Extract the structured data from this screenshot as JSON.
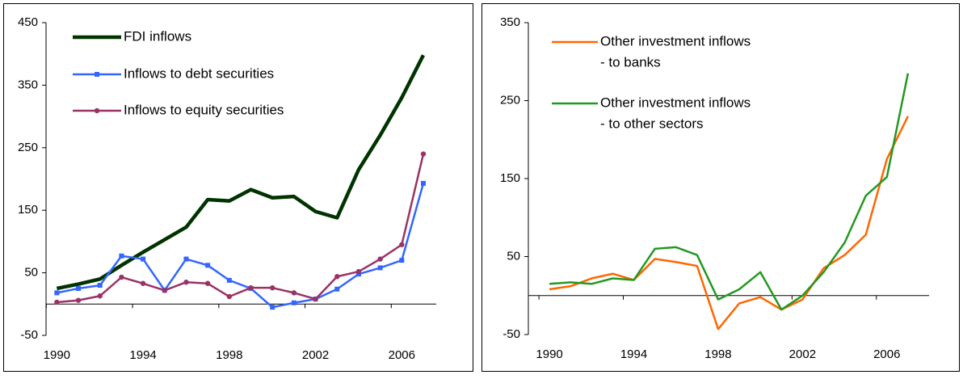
{
  "chart_data": [
    {
      "type": "line",
      "x": [
        1990,
        1991,
        1992,
        1993,
        1994,
        1995,
        1996,
        1997,
        1998,
        1999,
        2000,
        2001,
        2002,
        2003,
        2004,
        2005,
        2006,
        2007
      ],
      "xlim": [
        1989.5,
        2007.6
      ],
      "xticks": [
        1990,
        1994,
        1998,
        2002,
        2006
      ],
      "ylim": [
        -50,
        450
      ],
      "yticks": [
        -50,
        50,
        150,
        250,
        350,
        450
      ],
      "series": [
        {
          "name": "FDI inflows",
          "color": "#003300",
          "values": [
            25,
            32,
            40,
            62,
            83,
            103,
            123,
            167,
            165,
            183,
            170,
            172,
            148,
            138,
            215,
            270,
            330,
            398
          ]
        },
        {
          "name": "Inflows to debt securities",
          "color": "#3366ff",
          "marker": "square",
          "values": [
            18,
            25,
            30,
            77,
            72,
            22,
            72,
            62,
            38,
            25,
            -5,
            2,
            8,
            24,
            48,
            58,
            70,
            193
          ]
        },
        {
          "name": "Inflows to equity securities",
          "color": "#993366",
          "marker": "circle",
          "values": [
            3,
            6,
            13,
            43,
            33,
            22,
            35,
            33,
            12,
            26,
            26,
            18,
            8,
            44,
            52,
            72,
            95,
            240
          ]
        }
      ]
    },
    {
      "type": "line",
      "x": [
        1990,
        1991,
        1992,
        1993,
        1994,
        1995,
        1996,
        1997,
        1998,
        1999,
        2000,
        2001,
        2002,
        2003,
        2004,
        2005,
        2006,
        2007
      ],
      "xlim": [
        1989,
        2008
      ],
      "xticks": [
        1990,
        1994,
        1998,
        2002,
        2006
      ],
      "ylim": [
        -50,
        350
      ],
      "yticks": [
        -50,
        50,
        150,
        250,
        350
      ],
      "series": [
        {
          "name": [
            "Other investment inflows",
            "- to banks"
          ],
          "color": "#ff6600",
          "values": [
            8,
            12,
            22,
            28,
            20,
            47,
            43,
            38,
            -43,
            -10,
            -2,
            -18,
            -5,
            35,
            52,
            78,
            175,
            230
          ]
        },
        {
          "name": [
            "Other investment inflows",
            "- to other sectors"
          ],
          "color": "#229922",
          "values": [
            15,
            17,
            15,
            22,
            20,
            60,
            62,
            52,
            -5,
            8,
            30,
            -18,
            0,
            30,
            68,
            128,
            152,
            285
          ]
        }
      ]
    }
  ]
}
